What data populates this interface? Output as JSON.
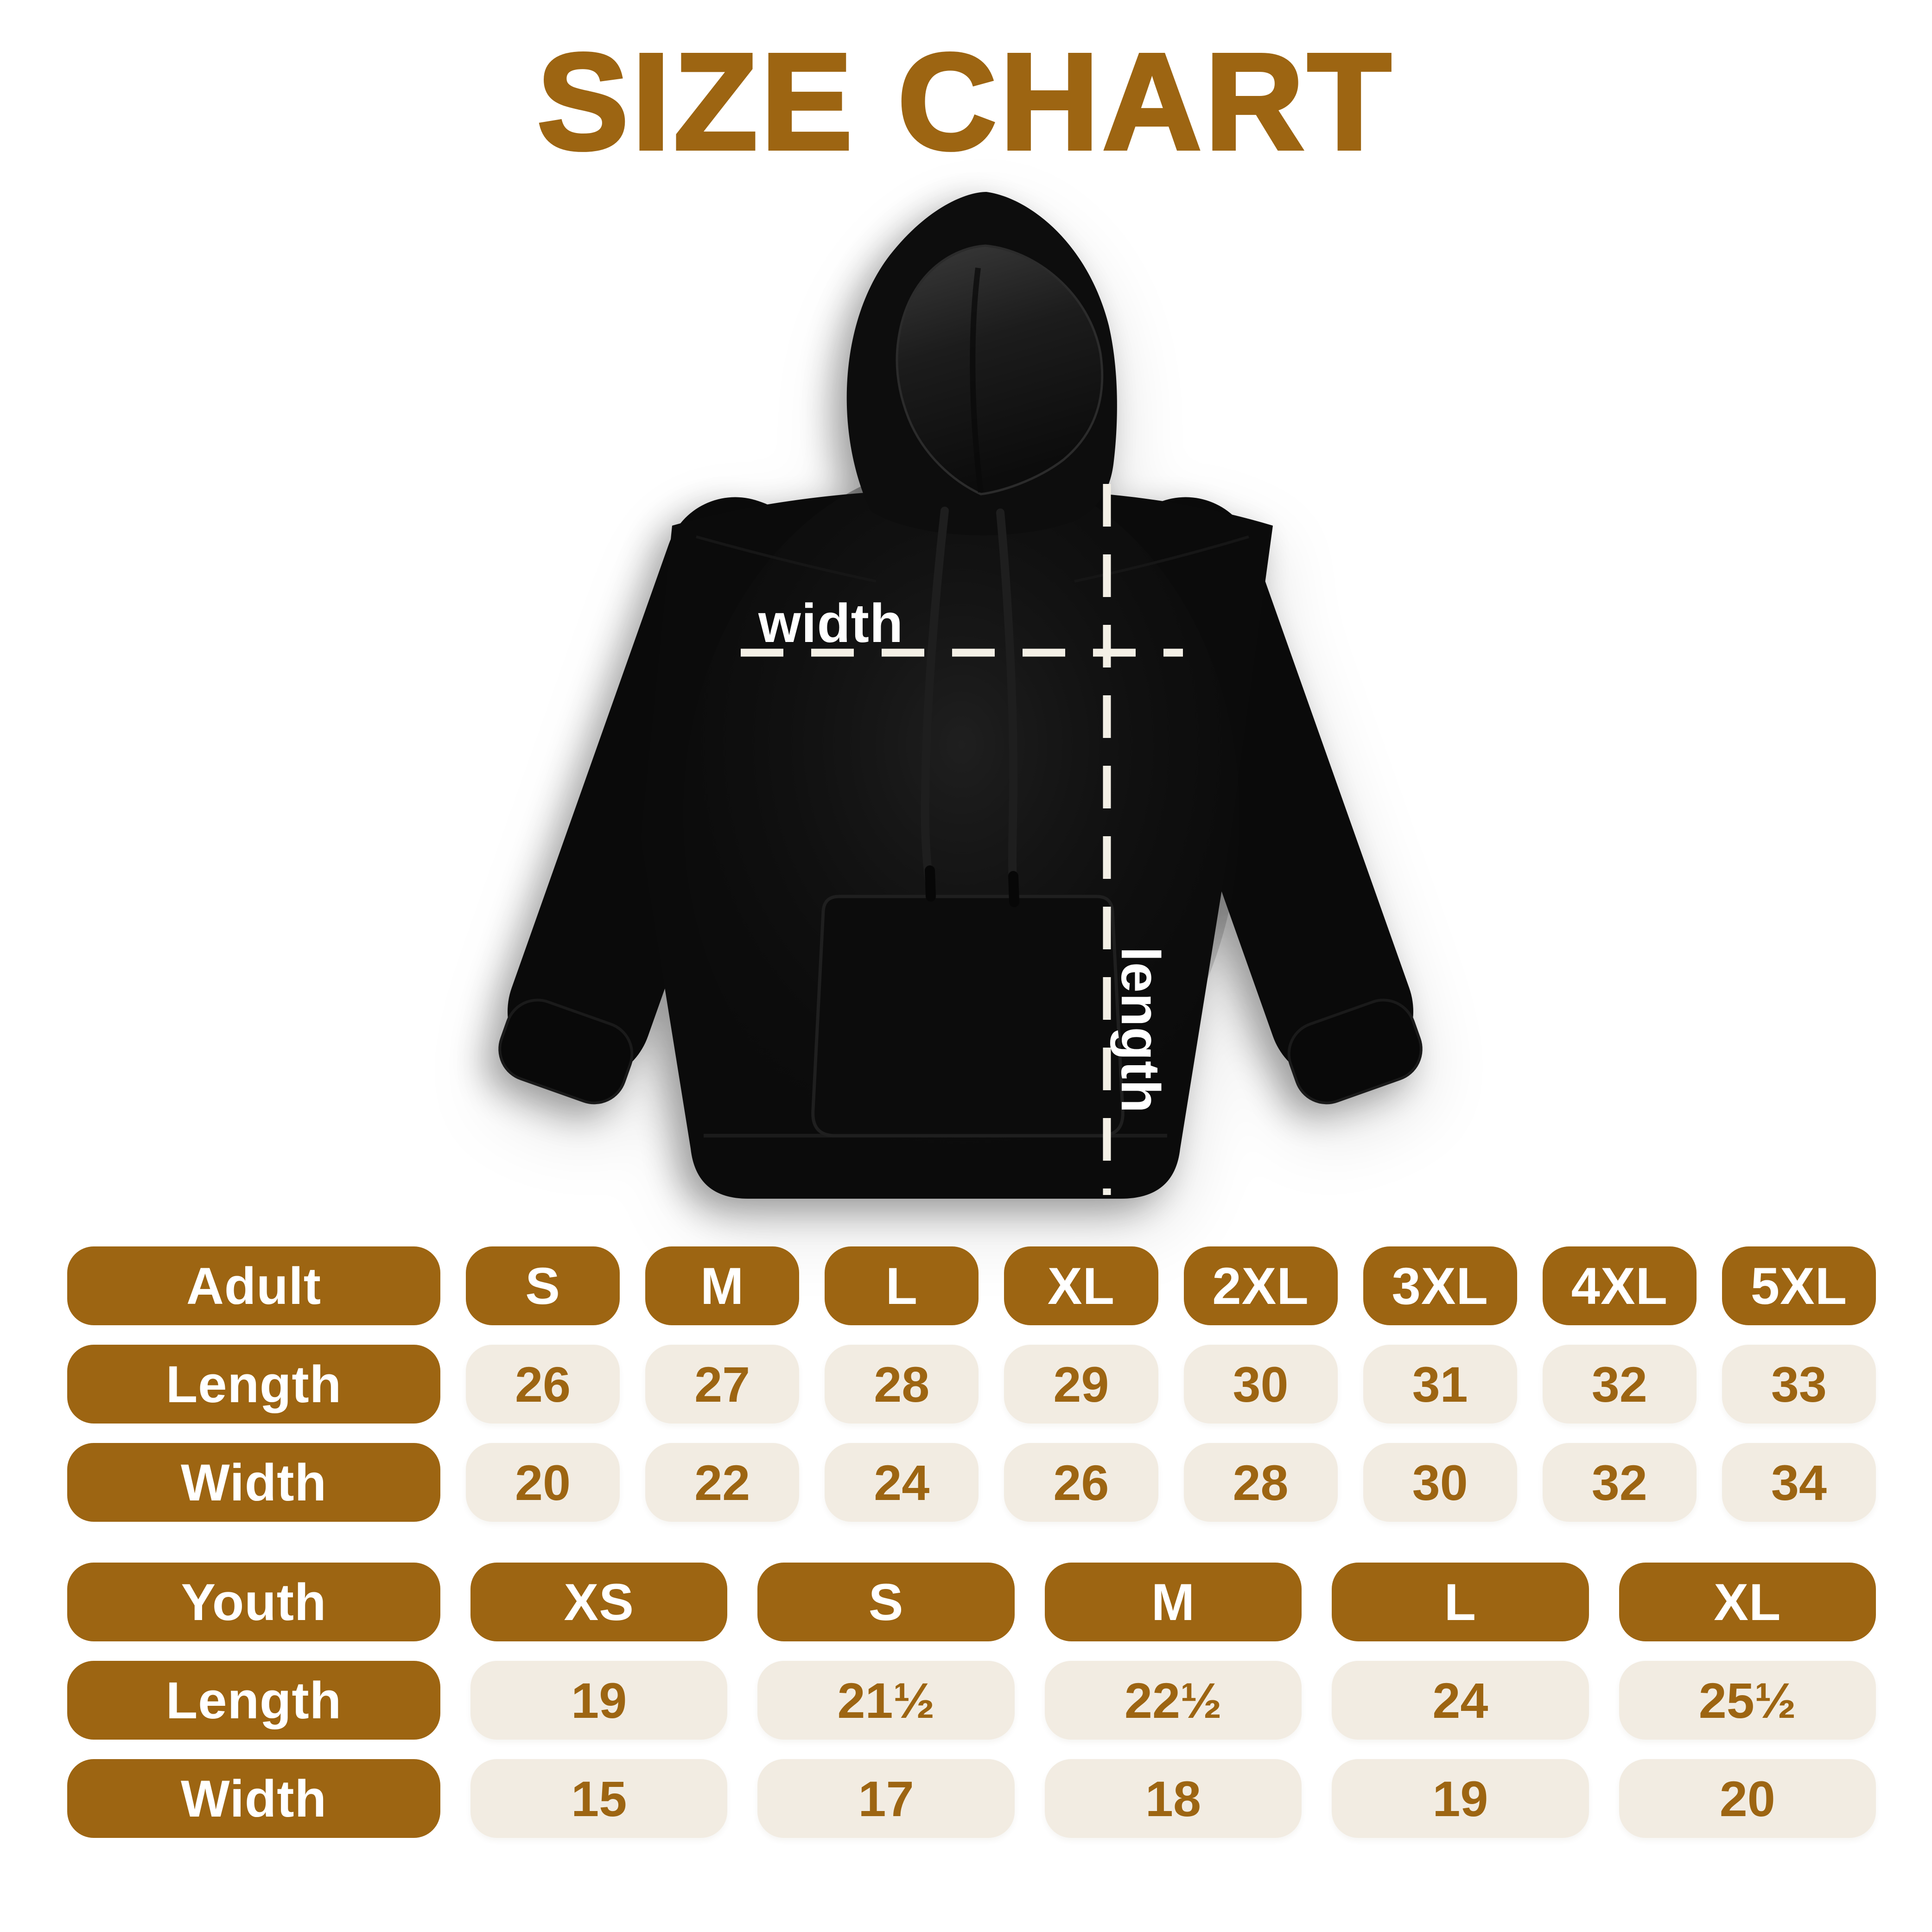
{
  "title": "SIZE CHART",
  "colors": {
    "brown": "#9D6512",
    "cream": "#F2ECE2",
    "page_bg": "#FFFFFF",
    "dash": "#F4F0E6",
    "hoodie_black": "#0B0B0B"
  },
  "diagram": {
    "width_label": "width",
    "length_label": "length"
  },
  "adult_table": {
    "header": {
      "label": "Adult",
      "sizes": [
        "S",
        "M",
        "L",
        "XL",
        "2XL",
        "3XL",
        "4XL",
        "5XL"
      ]
    },
    "rows": [
      {
        "label": "Length",
        "values": [
          "26",
          "27",
          "28",
          "29",
          "30",
          "31",
          "32",
          "33"
        ]
      },
      {
        "label": "Width",
        "values": [
          "20",
          "22",
          "24",
          "26",
          "28",
          "30",
          "32",
          "34"
        ]
      }
    ]
  },
  "youth_table": {
    "header": {
      "label": "Youth",
      "sizes": [
        "XS",
        "S",
        "M",
        "L",
        "XL"
      ]
    },
    "rows": [
      {
        "label": "Length",
        "values": [
          "19",
          "21½",
          "22½",
          "24",
          "25½"
        ]
      },
      {
        "label": "Width",
        "values": [
          "15",
          "17",
          "18",
          "19",
          "20"
        ]
      }
    ]
  }
}
